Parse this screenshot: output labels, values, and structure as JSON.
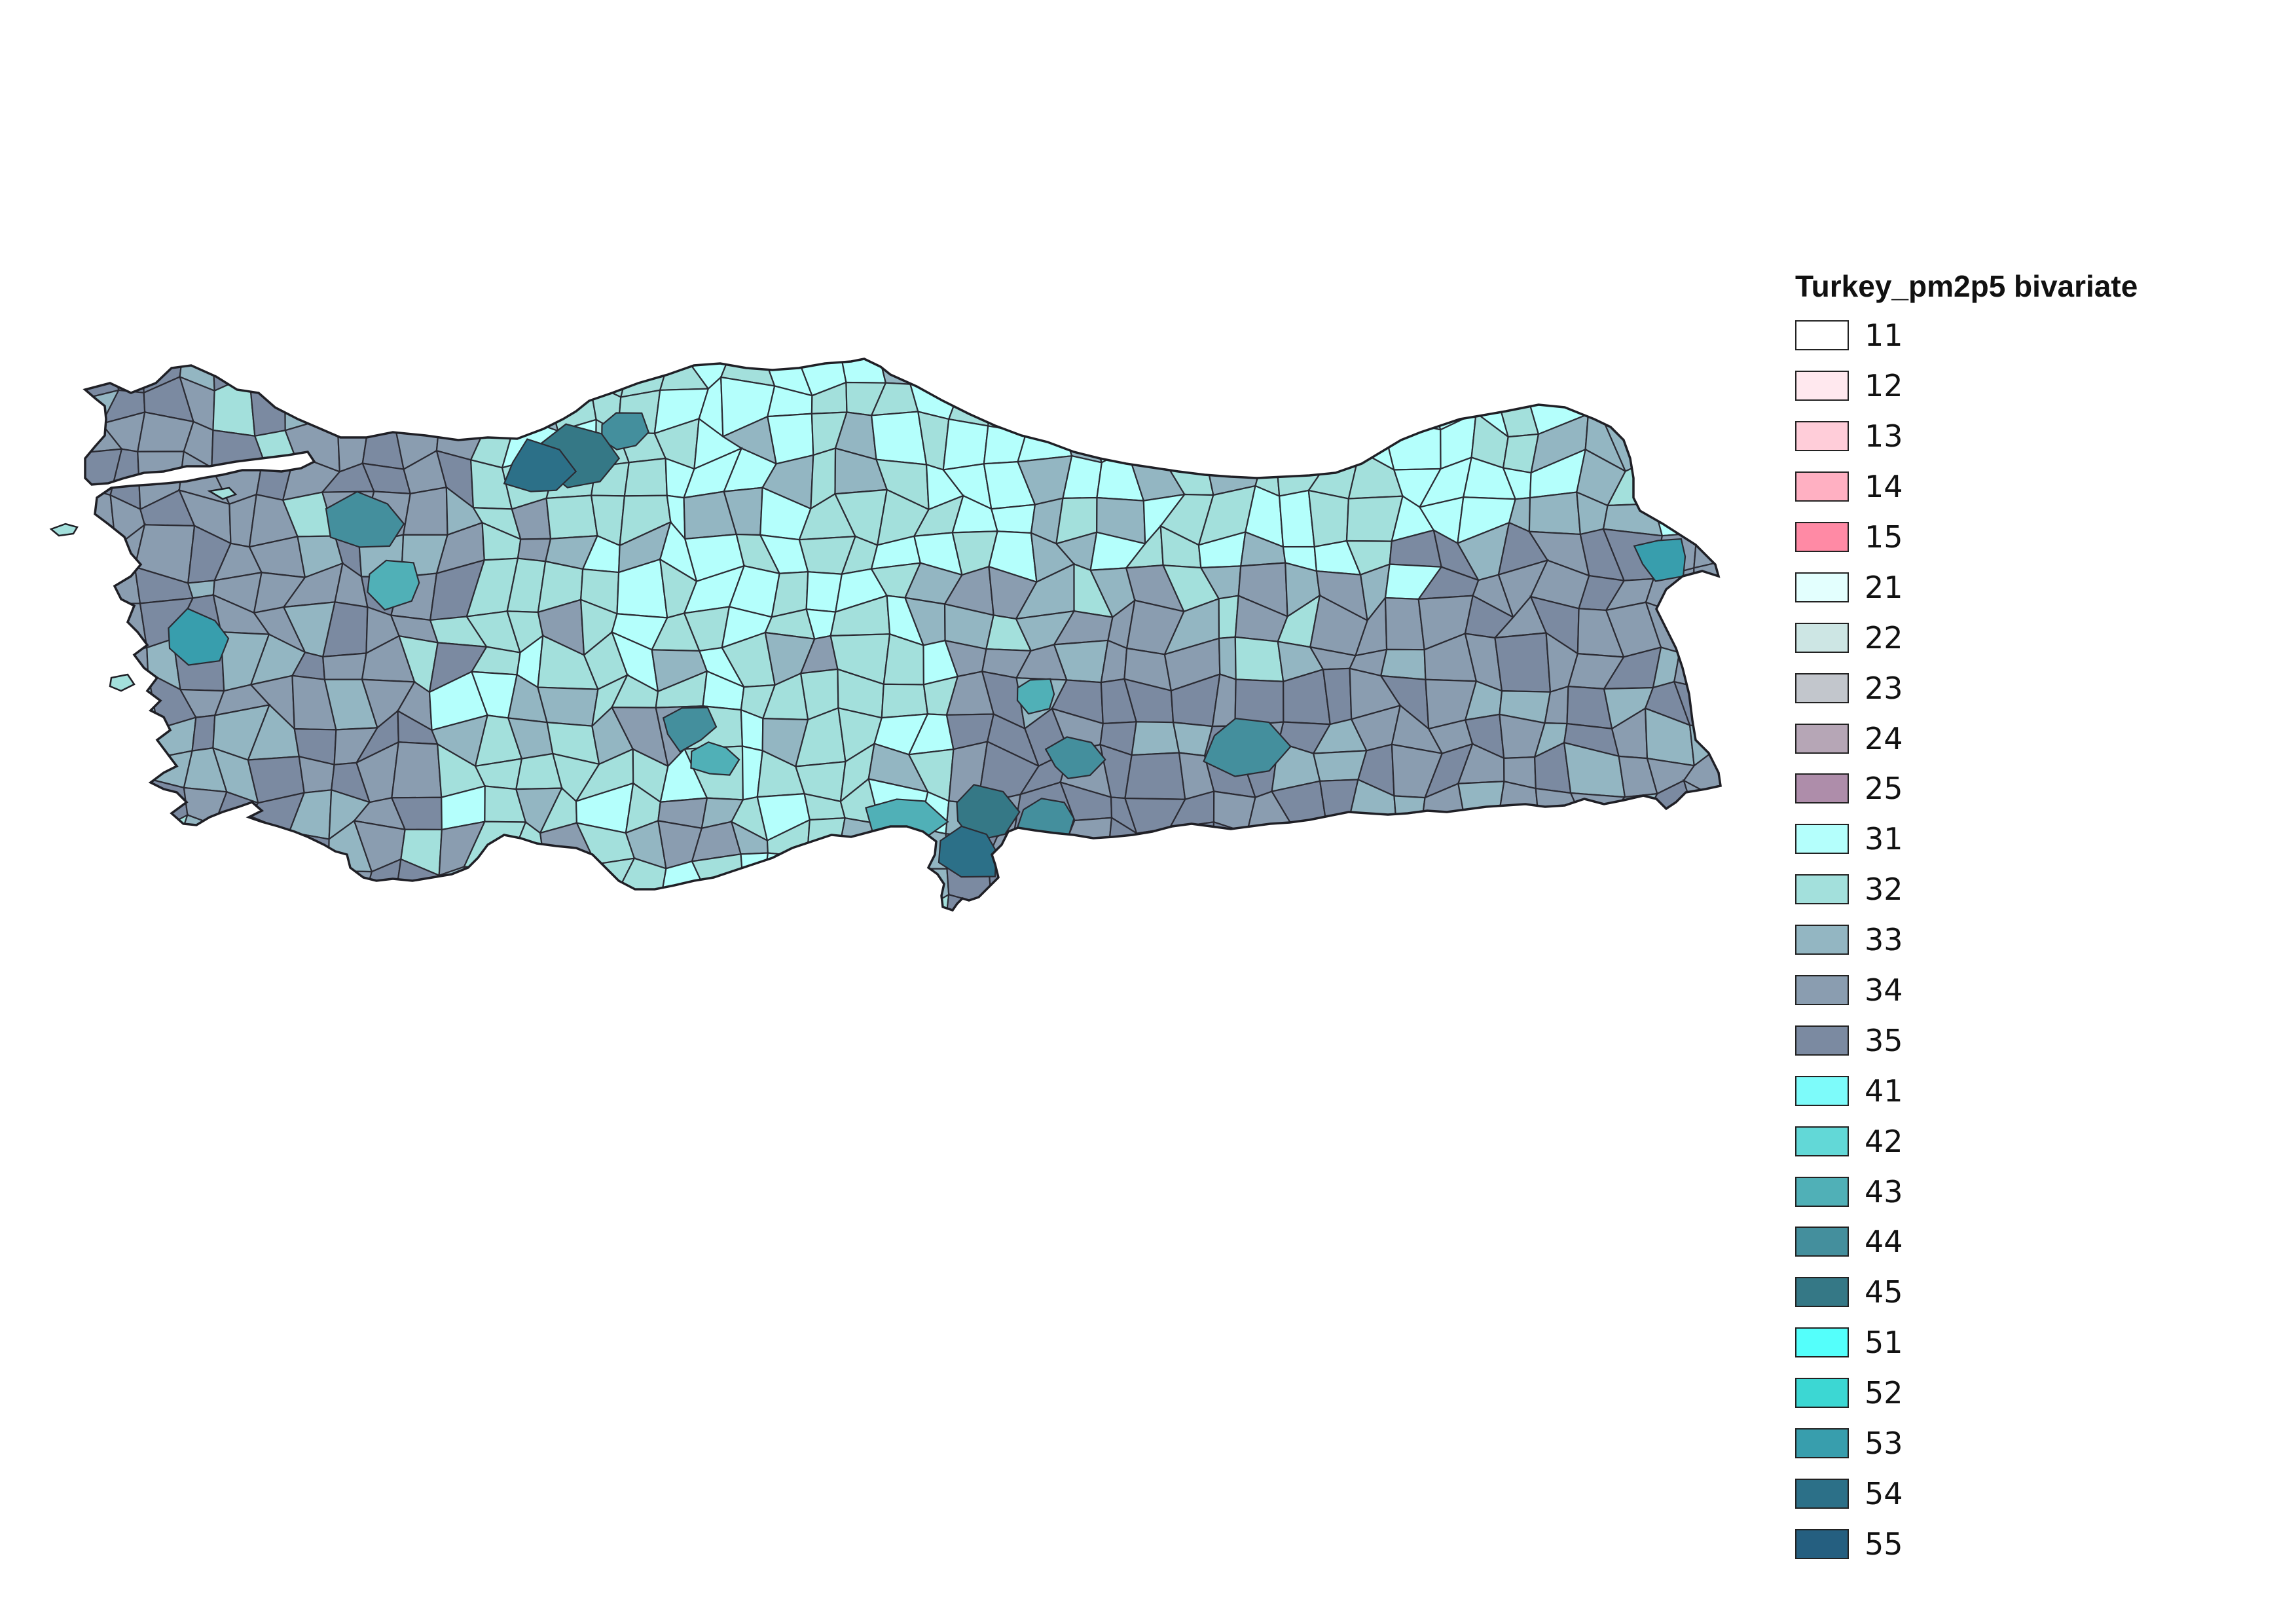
{
  "map": {
    "country": "Turkey",
    "boundary_color": "#2b2b33",
    "background": "#ffffff"
  },
  "legend": {
    "title": "Turkey_pm2p5 bivariate",
    "items": [
      {
        "label": "11",
        "color": "#ffffff"
      },
      {
        "label": "12",
        "color": "#ffe8ee"
      },
      {
        "label": "13",
        "color": "#ffcdd9"
      },
      {
        "label": "14",
        "color": "#ffb0c2"
      },
      {
        "label": "15",
        "color": "#ff8aa5"
      },
      {
        "label": "21",
        "color": "#e3fffe"
      },
      {
        "label": "22",
        "color": "#cde6e4"
      },
      {
        "label": "23",
        "color": "#c2c6cc"
      },
      {
        "label": "24",
        "color": "#b6a6b6"
      },
      {
        "label": "25",
        "color": "#ae8daa"
      },
      {
        "label": "31",
        "color": "#b4fffc"
      },
      {
        "label": "32",
        "color": "#a3e0dc"
      },
      {
        "label": "33",
        "color": "#93b6c2"
      },
      {
        "label": "34",
        "color": "#8a9db0"
      },
      {
        "label": "35",
        "color": "#7b8aa1"
      },
      {
        "label": "41",
        "color": "#7dfbfa"
      },
      {
        "label": "42",
        "color": "#62d8d7"
      },
      {
        "label": "43",
        "color": "#50b0b7"
      },
      {
        "label": "44",
        "color": "#448f9d"
      },
      {
        "label": "45",
        "color": "#357886"
      },
      {
        "label": "51",
        "color": "#54fffb"
      },
      {
        "label": "52",
        "color": "#3cd7d3"
      },
      {
        "label": "53",
        "color": "#389ead"
      },
      {
        "label": "54",
        "color": "#2c7088"
      },
      {
        "label": "55",
        "color": "#255f80"
      }
    ]
  },
  "dominant_regions": {
    "west": "34",
    "central": "32",
    "north_central": "31",
    "east": "34",
    "southeast": "35",
    "hotspots": "44"
  }
}
